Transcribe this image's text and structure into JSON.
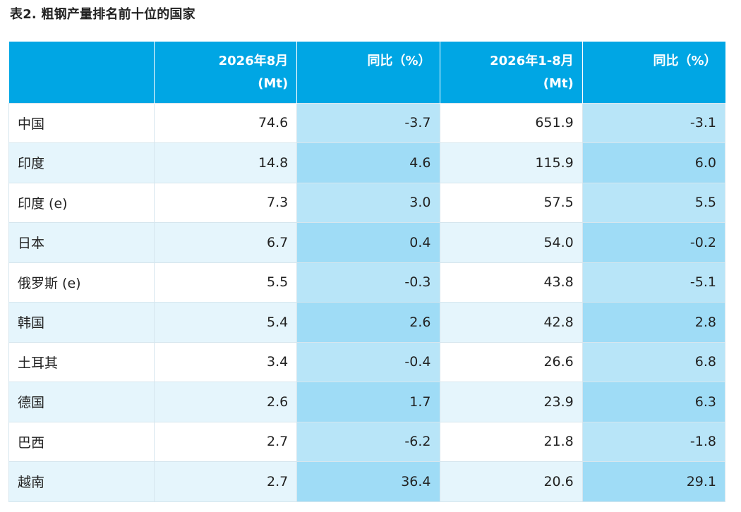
{
  "title": "表2. 粗钢产量排名前十位的国家",
  "header": {
    "col1_line1": "2026年8月",
    "col1_line2": "(Mt)",
    "col2": "同比（%）",
    "col3_line1": "2026年1-8月",
    "col3_line2": "(Mt)",
    "col4": "同比（%）"
  },
  "rows": [
    {
      "country": "中国",
      "aug": "74.6",
      "aug_yoy": "-3.7",
      "ytd": "651.9",
      "ytd_yoy": "-3.1"
    },
    {
      "country": "印度",
      "aug": "14.8",
      "aug_yoy": "4.6",
      "ytd": "115.9",
      "ytd_yoy": "6.0"
    },
    {
      "country": "印度 (e)",
      "aug": "7.3",
      "aug_yoy": "3.0",
      "ytd": "57.5",
      "ytd_yoy": "5.5"
    },
    {
      "country": "日本",
      "aug": "6.7",
      "aug_yoy": "0.4",
      "ytd": "54.0",
      "ytd_yoy": "-0.2"
    },
    {
      "country": "俄罗斯 (e)",
      "aug": "5.5",
      "aug_yoy": "-0.3",
      "ytd": "43.8",
      "ytd_yoy": "-5.1"
    },
    {
      "country": "韩国",
      "aug": "5.4",
      "aug_yoy": "2.6",
      "ytd": "42.8",
      "ytd_yoy": "2.8"
    },
    {
      "country": "土耳其",
      "aug": "3.4",
      "aug_yoy": "-0.4",
      "ytd": "26.6",
      "ytd_yoy": "6.8"
    },
    {
      "country": "德国",
      "aug": "2.6",
      "aug_yoy": "1.7",
      "ytd": "23.9",
      "ytd_yoy": "6.3"
    },
    {
      "country": "巴西",
      "aug": "2.7",
      "aug_yoy": "-6.2",
      "ytd": "21.8",
      "ytd_yoy": "-1.8"
    },
    {
      "country": "越南",
      "aug": "2.7",
      "aug_yoy": "36.4",
      "ytd": "20.6",
      "ytd_yoy": "29.1"
    }
  ]
}
